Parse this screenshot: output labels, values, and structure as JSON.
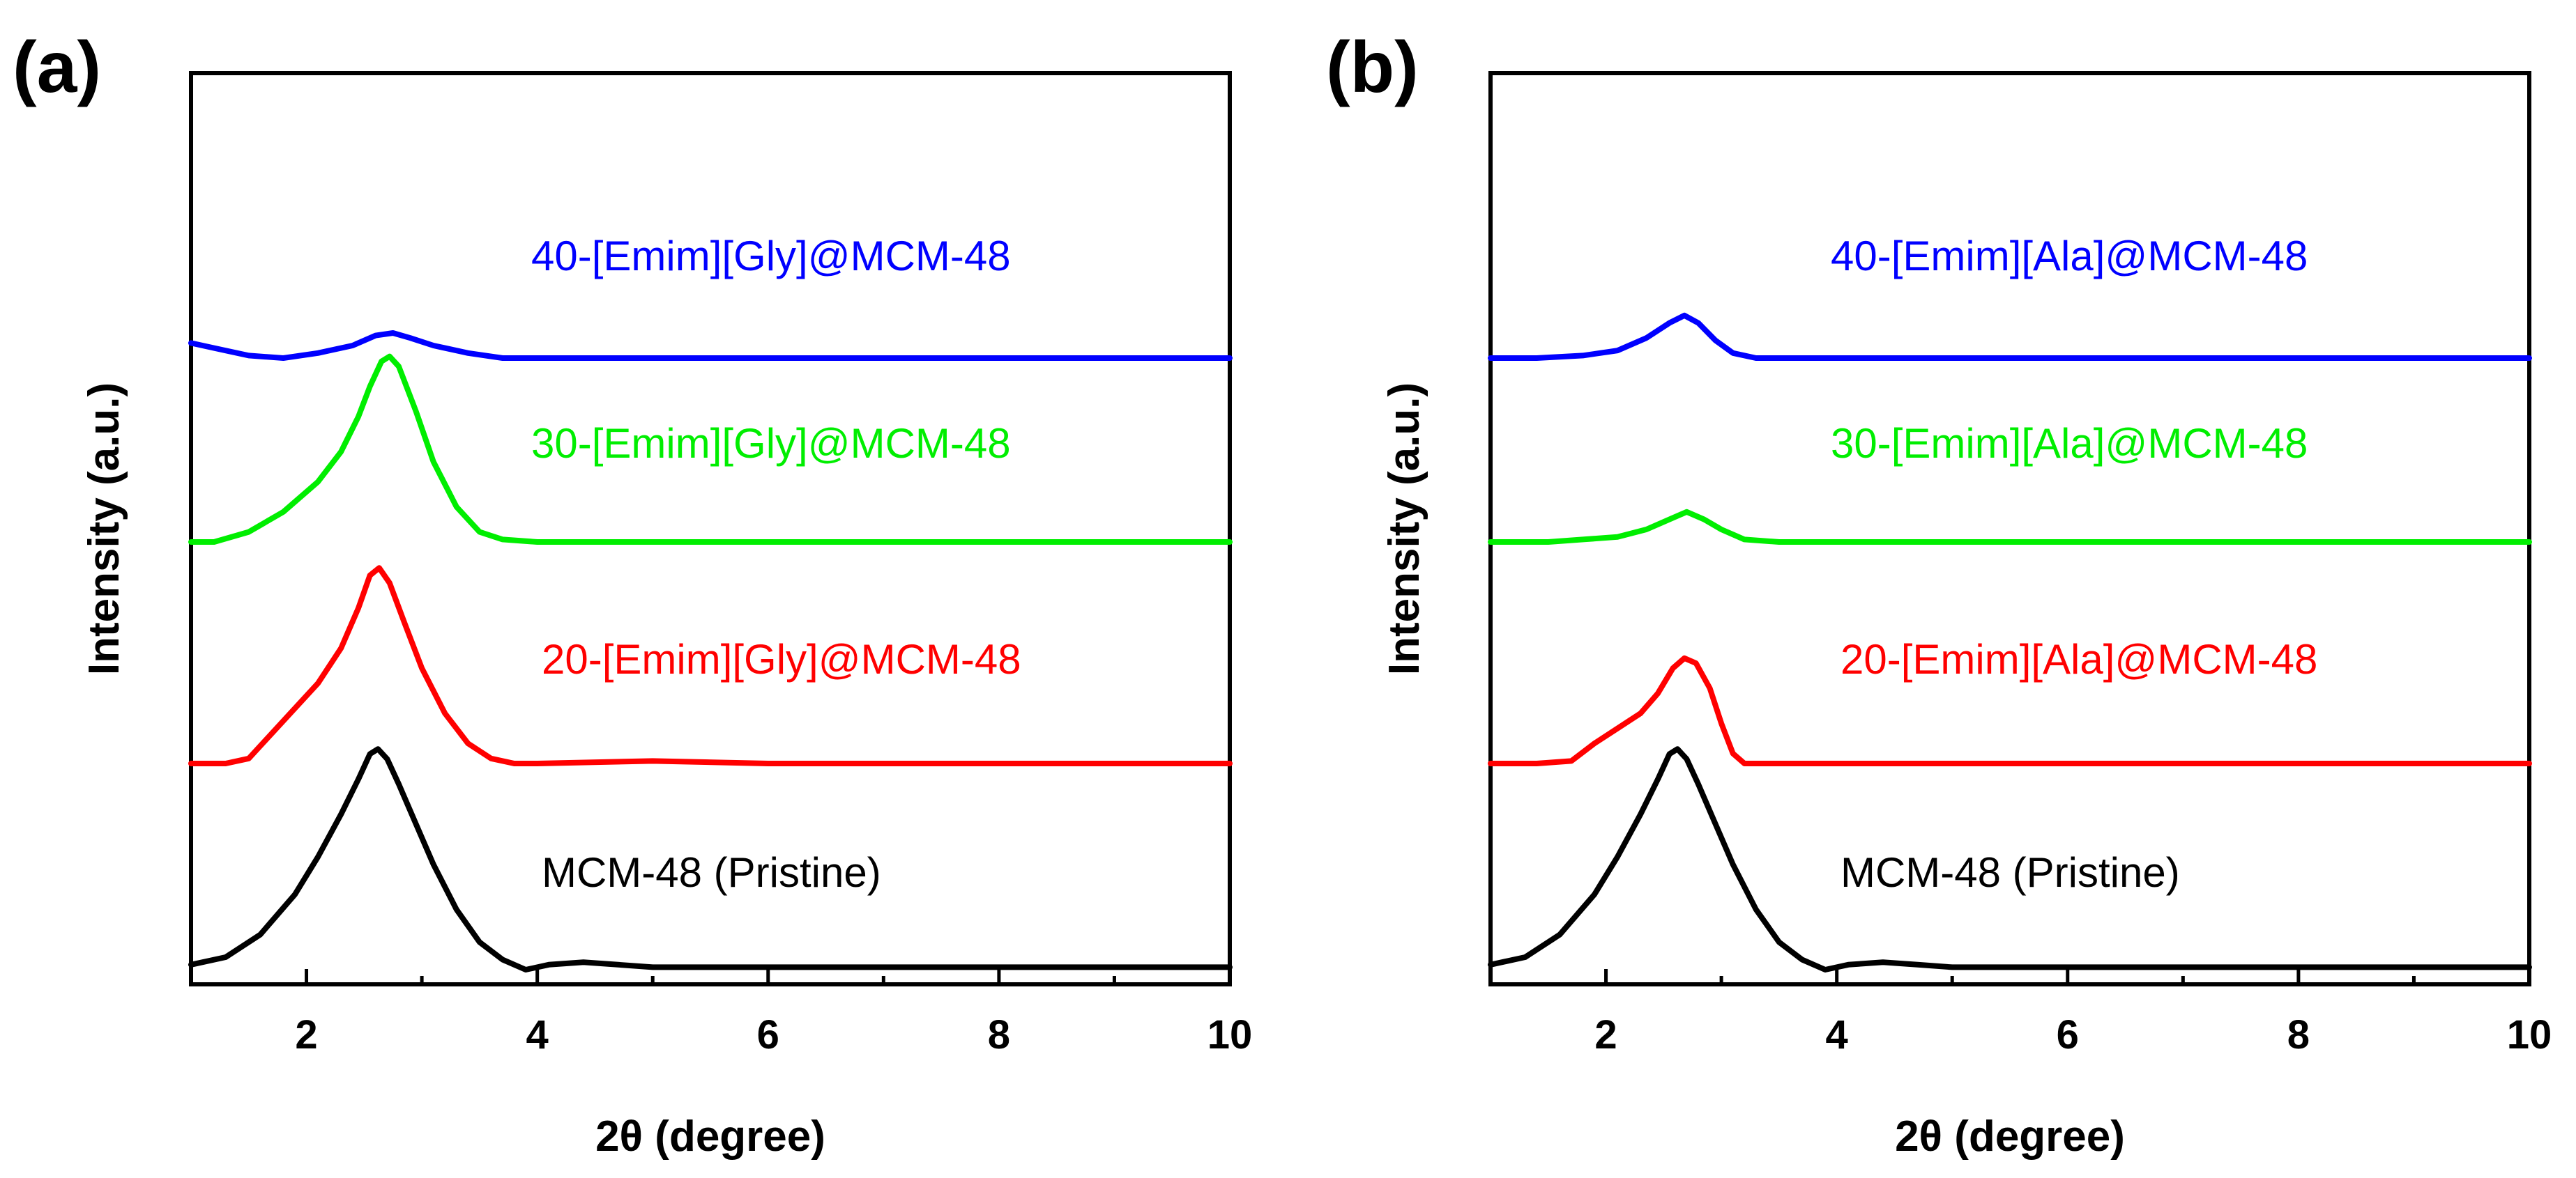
{
  "chart_data": [
    {
      "type": "line",
      "panel_label": "(a)",
      "xlabel": "2θ (degree)",
      "ylabel": "Intensity (a.u.)",
      "xlim": [
        1,
        10
      ],
      "xticks": [
        2,
        4,
        6,
        8,
        10
      ],
      "yticks": [],
      "series": [
        {
          "name": "MCM-48 (Pristine)",
          "color": "#000000",
          "offset": 0,
          "x": [
            1.0,
            1.3,
            1.6,
            1.9,
            2.1,
            2.3,
            2.45,
            2.55,
            2.62,
            2.7,
            2.8,
            2.95,
            3.1,
            3.3,
            3.5,
            3.7,
            3.9,
            4.1,
            4.4,
            4.7,
            5.0,
            6.0,
            7.0,
            8.0,
            9.0,
            10.0
          ],
          "y": [
            0.02,
            0.05,
            0.14,
            0.3,
            0.45,
            0.62,
            0.76,
            0.86,
            0.88,
            0.84,
            0.74,
            0.58,
            0.42,
            0.24,
            0.11,
            0.04,
            0.0,
            0.02,
            0.03,
            0.02,
            0.01,
            0.01,
            0.01,
            0.01,
            0.01,
            0.01
          ]
        },
        {
          "name": "20-[Emim][Gly]@MCM-48",
          "color": "#ff0000",
          "offset": 1.0,
          "x": [
            1.0,
            1.3,
            1.5,
            1.7,
            1.9,
            2.1,
            2.3,
            2.45,
            2.55,
            2.63,
            2.72,
            2.85,
            3.0,
            3.2,
            3.4,
            3.6,
            3.8,
            4.0,
            5.0,
            6.0,
            7.0,
            8.0,
            9.0,
            10.0
          ],
          "y": [
            0.0,
            0.0,
            0.02,
            0.12,
            0.22,
            0.32,
            0.46,
            0.62,
            0.75,
            0.78,
            0.72,
            0.56,
            0.38,
            0.2,
            0.08,
            0.02,
            0.0,
            0.0,
            0.01,
            0.0,
            0.0,
            0.0,
            0.0,
            0.0
          ]
        },
        {
          "name": "30-[Emim][Gly]@MCM-48",
          "color": "#00ee00",
          "offset": 2.0,
          "x": [
            1.0,
            1.2,
            1.5,
            1.8,
            2.1,
            2.3,
            2.45,
            2.55,
            2.65,
            2.72,
            2.8,
            2.95,
            3.1,
            3.3,
            3.5,
            3.7,
            4.0,
            5.0,
            6.0,
            7.0,
            8.0,
            9.0,
            10.0
          ],
          "y": [
            0.0,
            0.0,
            0.04,
            0.12,
            0.24,
            0.36,
            0.5,
            0.62,
            0.72,
            0.74,
            0.7,
            0.52,
            0.32,
            0.14,
            0.04,
            0.01,
            0.0,
            0.0,
            0.0,
            0.0,
            0.0,
            0.0,
            0.0
          ]
        },
        {
          "name": "40-[Emim][Gly]@MCM-48",
          "color": "#0000ff",
          "offset": 3.0,
          "x": [
            1.0,
            1.2,
            1.5,
            1.8,
            2.1,
            2.4,
            2.6,
            2.75,
            2.9,
            3.1,
            3.4,
            3.7,
            4.0,
            5.0,
            6.0,
            7.0,
            8.0,
            9.0,
            10.0
          ],
          "y": [
            0.06,
            0.04,
            0.01,
            0.0,
            0.02,
            0.05,
            0.09,
            0.1,
            0.08,
            0.05,
            0.02,
            0.0,
            0.0,
            0.0,
            0.0,
            0.0,
            0.0,
            0.0,
            0.0
          ]
        }
      ]
    },
    {
      "type": "line",
      "panel_label": "(b)",
      "xlabel": "2θ (degree)",
      "ylabel": "Intensity (a.u.)",
      "xlim": [
        1,
        10
      ],
      "xticks": [
        2,
        4,
        6,
        8,
        10
      ],
      "yticks": [],
      "series": [
        {
          "name": "MCM-48 (Pristine)",
          "color": "#000000",
          "offset": 0,
          "x": [
            1.0,
            1.3,
            1.6,
            1.9,
            2.1,
            2.3,
            2.45,
            2.55,
            2.62,
            2.7,
            2.8,
            2.95,
            3.1,
            3.3,
            3.5,
            3.7,
            3.9,
            4.1,
            4.4,
            4.7,
            5.0,
            6.0,
            7.0,
            8.0,
            9.0,
            10.0
          ],
          "y": [
            0.02,
            0.05,
            0.14,
            0.3,
            0.45,
            0.62,
            0.76,
            0.86,
            0.88,
            0.84,
            0.74,
            0.58,
            0.42,
            0.24,
            0.11,
            0.04,
            0.0,
            0.02,
            0.03,
            0.02,
            0.01,
            0.01,
            0.01,
            0.01,
            0.01,
            0.01
          ]
        },
        {
          "name": "20-[Emim][Ala]@MCM-48",
          "color": "#ff0000",
          "offset": 1.0,
          "x": [
            1.0,
            1.4,
            1.7,
            1.9,
            2.1,
            2.3,
            2.45,
            2.58,
            2.68,
            2.78,
            2.9,
            3.0,
            3.1,
            3.2,
            3.5,
            4.0,
            5.0,
            6.0,
            7.0,
            8.0,
            9.0,
            10.0
          ],
          "y": [
            0.0,
            0.0,
            0.01,
            0.08,
            0.14,
            0.2,
            0.28,
            0.38,
            0.42,
            0.4,
            0.3,
            0.16,
            0.04,
            0.0,
            0.0,
            0.0,
            0.0,
            0.0,
            0.0,
            0.0,
            0.0,
            0.0
          ]
        },
        {
          "name": "30-[Emim][Ala]@MCM-48",
          "color": "#00ee00",
          "offset": 2.0,
          "x": [
            1.0,
            1.5,
            1.8,
            2.1,
            2.35,
            2.55,
            2.7,
            2.85,
            3.0,
            3.2,
            3.5,
            4.0,
            5.0,
            6.0,
            7.0,
            8.0,
            9.0,
            10.0
          ],
          "y": [
            0.0,
            0.0,
            0.01,
            0.02,
            0.05,
            0.09,
            0.12,
            0.09,
            0.05,
            0.01,
            0.0,
            0.0,
            0.0,
            0.0,
            0.0,
            0.0,
            0.0,
            0.0
          ]
        },
        {
          "name": "40-[Emim][Ala]@MCM-48",
          "color": "#0000ff",
          "offset": 3.0,
          "x": [
            1.0,
            1.4,
            1.8,
            2.1,
            2.35,
            2.55,
            2.68,
            2.8,
            2.95,
            3.1,
            3.3,
            3.5,
            4.0,
            5.0,
            6.0,
            7.0,
            8.0,
            9.0,
            10.0
          ],
          "y": [
            0.0,
            0.0,
            0.01,
            0.03,
            0.08,
            0.14,
            0.17,
            0.14,
            0.07,
            0.02,
            0.0,
            0.0,
            0.0,
            0.0,
            0.0,
            0.0,
            0.0,
            0.0,
            0.0
          ]
        }
      ]
    }
  ]
}
